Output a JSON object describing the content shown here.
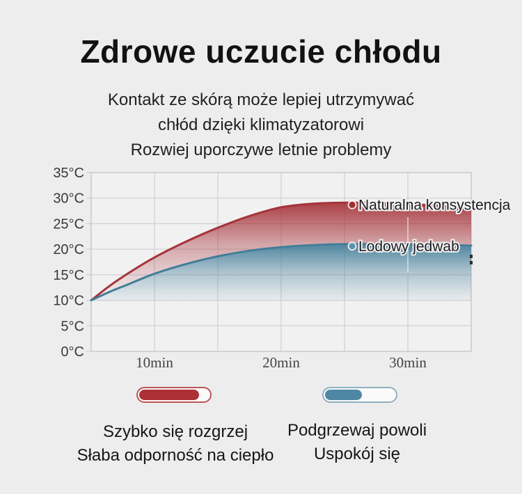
{
  "page": {
    "background": "#ededee"
  },
  "header": {
    "title": "Zdrowe uczucie chłodu",
    "subtitle_lines": [
      "Kontakt ze skórą może lepiej utrzymywać",
      "chłód dzięki klimatyzatorowi",
      "Rozwiej uporczywe letnie problemy"
    ]
  },
  "chart_data": {
    "type": "area",
    "title": "",
    "x_unit": "min",
    "y_unit": "°C",
    "x_range_minutes": [
      5,
      35
    ],
    "y_range_celsius": [
      0,
      35
    ],
    "grid": true,
    "x_gridline_minutes": [
      5,
      10,
      15,
      20,
      25,
      30,
      35
    ],
    "x_ticks": [
      {
        "minute": 10,
        "label": "10min"
      },
      {
        "minute": 20,
        "label": "20min"
      },
      {
        "minute": 30,
        "label": "30min"
      }
    ],
    "y_ticks": [
      {
        "celsius": 0,
        "label": "0°C"
      },
      {
        "celsius": 5,
        "label": "5°C"
      },
      {
        "celsius": 10,
        "label": "10°C"
      },
      {
        "celsius": 15,
        "label": "15°C"
      },
      {
        "celsius": 20,
        "label": "20°C"
      },
      {
        "celsius": 25,
        "label": "25°C"
      },
      {
        "celsius": 30,
        "label": "30°C"
      },
      {
        "celsius": 35,
        "label": "35°C"
      }
    ],
    "series": [
      {
        "name": "Naturalna konsystencja",
        "line_color": "#a4343a",
        "fill_color": "#a5343a",
        "dot_color": "#9d2d34",
        "points_min_celsius": [
          [
            5,
            10
          ],
          [
            6.5,
            12.9
          ],
          [
            8,
            15.4
          ],
          [
            10,
            18.4
          ],
          [
            12.5,
            21.5
          ],
          [
            15,
            24.2
          ],
          [
            17.5,
            26.5
          ],
          [
            20,
            28.2
          ],
          [
            22.5,
            28.9
          ],
          [
            25,
            29.1
          ],
          [
            27.5,
            29.05
          ],
          [
            30,
            28.85
          ],
          [
            32.5,
            28.5
          ],
          [
            35,
            28.05
          ]
        ]
      },
      {
        "name": "Lodowy jedwab",
        "line_color": "#437d98",
        "fill_color": "#47809b",
        "dot_color": "#5b92ad",
        "points_min_celsius": [
          [
            5,
            10
          ],
          [
            6.5,
            11.7
          ],
          [
            8,
            13.2
          ],
          [
            10,
            15.2
          ],
          [
            12.5,
            17.1
          ],
          [
            15,
            18.6
          ],
          [
            17.5,
            19.7
          ],
          [
            20,
            20.4
          ],
          [
            22.5,
            20.8
          ],
          [
            25,
            21.0
          ],
          [
            27.5,
            21.0
          ],
          [
            30,
            20.95
          ],
          [
            32.5,
            20.85
          ],
          [
            35,
            20.7
          ]
        ]
      }
    ],
    "baseline_celsius": 10
  },
  "legend": {
    "pills": [
      {
        "meaning": "fast-heating",
        "outline_color": "#bb555b",
        "fill_color": "#ac3036",
        "fill_ratio": 0.86
      },
      {
        "meaning": "slow-heating",
        "outline_color": "#8fb0c0",
        "fill_color": "#4d87a3",
        "fill_ratio": 0.53
      }
    ],
    "captions_left": [
      "Szybko się rozgrzej",
      "Słaba odporność na ciepło"
    ],
    "captions_right": [
      "Podgrzewaj powoli",
      "Uspokój się"
    ]
  }
}
